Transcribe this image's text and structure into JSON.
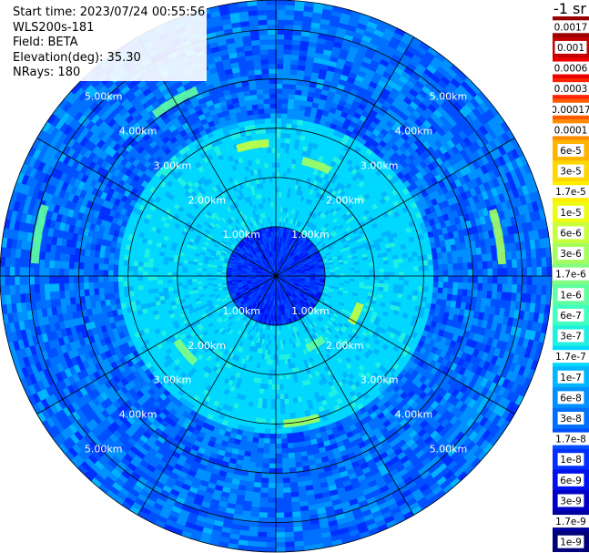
{
  "header": {
    "start_time": "Start time: 2023/07/24 00:55:56",
    "instrument": "WLS200s-181",
    "field": "Field: BETA",
    "elevation": "Elevation(deg): 35.30",
    "nrays": "NRays: 180"
  },
  "colorbar": {
    "units": "-1 sr",
    "ticks": [
      "0.0017",
      "0.001",
      "0.0006",
      "0.0003",
      "0.00017",
      "0.0001",
      "6e-5",
      "3e-5",
      "1.7e-5",
      "1e-5",
      "6e-6",
      "3e-6",
      "1.7e-6",
      "1e-6",
      "6e-7",
      "3e-7",
      "1.7e-7",
      "1e-7",
      "6e-8",
      "3e-8",
      "1.7e-8",
      "1e-8",
      "6e-9",
      "3e-9",
      "1.7e-9",
      "1e-9"
    ],
    "colors": [
      "#990000",
      "#c40000",
      "#ee0000",
      "#ff2400",
      "#ff5a00",
      "#ff8c00",
      "#ffb400",
      "#ffd600",
      "#ffee00",
      "#eefc14",
      "#c8ff3c",
      "#a4ff5e",
      "#82ff80",
      "#60ffa0",
      "#40ffc0",
      "#20f0e0",
      "#00d8ff",
      "#00b4ff",
      "#0090ff",
      "#0070ff",
      "#0050ff",
      "#0030ff",
      "#0010ee",
      "#0000c4",
      "#00009c",
      "#000078"
    ]
  },
  "chart_data": {
    "type": "heatmap",
    "projection": "polar PPI",
    "range_unit": "km",
    "range_max_km": 5.6,
    "range_rings_km": [
      1,
      2,
      3,
      4,
      5
    ],
    "ring_labels": [
      "1.00km",
      "2.00km",
      "3.00km",
      "4.00km",
      "5.00km"
    ],
    "spoke_angles_deg": [
      0,
      30,
      60,
      90,
      120,
      150,
      180,
      210,
      240,
      270,
      300,
      330
    ],
    "n_rays": 180,
    "value_scale": "log",
    "value_range": [
      1e-09,
      0.0017
    ],
    "typical_value_near_field": 1e-08,
    "typical_value_mid_field": 1.7e-07,
    "typical_value_far_field": 3e-08,
    "features": [
      {
        "azimuth_deg": 20,
        "range_km": 2.4,
        "value": 3e-06
      },
      {
        "azimuth_deg": 80,
        "range_km": 4.6,
        "value": 3e-06
      },
      {
        "azimuth_deg": 115,
        "range_km": 1.8,
        "value": 6e-06
      },
      {
        "azimuth_deg": 150,
        "range_km": 1.6,
        "value": 1e-06
      },
      {
        "azimuth_deg": 170,
        "range_km": 3.0,
        "value": 3e-06
      },
      {
        "azimuth_deg": 230,
        "range_km": 2.4,
        "value": 1.7e-06
      },
      {
        "azimuth_deg": 280,
        "range_km": 4.9,
        "value": 1e-06
      },
      {
        "azimuth_deg": 330,
        "range_km": 4.1,
        "value": 1e-06
      },
      {
        "azimuth_deg": 350,
        "range_km": 2.7,
        "value": 6e-06
      }
    ]
  }
}
